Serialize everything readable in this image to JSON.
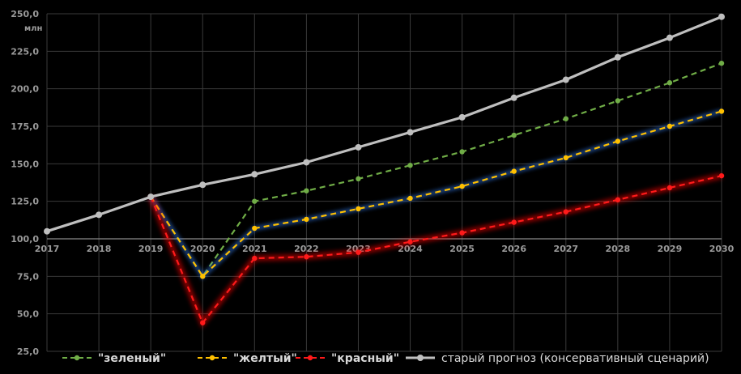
{
  "chart_data": {
    "type": "line",
    "ylabel": "млн",
    "x": [
      2017,
      2018,
      2019,
      2020,
      2021,
      2022,
      2023,
      2024,
      2025,
      2026,
      2027,
      2028,
      2029,
      2030
    ],
    "ylim": [
      25,
      250
    ],
    "yticks": [
      "25,0",
      "50,0",
      "75,0",
      "100,0",
      "125,0",
      "150,0",
      "175,0",
      "200,0",
      "225,0",
      "250,0"
    ],
    "ytick_values": [
      25,
      50,
      75,
      100,
      125,
      150,
      175,
      200,
      225,
      250
    ],
    "grid": true,
    "legend_position": "bottom",
    "series": [
      {
        "name": "\"зеленый\"",
        "color": "#70ad47",
        "dash": true,
        "bold": true,
        "values": [
          null,
          null,
          128,
          75,
          125,
          132,
          140,
          149,
          158,
          169,
          180,
          192,
          204,
          217
        ]
      },
      {
        "name": "\"желтый\"",
        "color": "#ffc000",
        "dash": true,
        "bold": true,
        "glow": "#2f6fd6",
        "values": [
          null,
          null,
          128,
          75,
          107,
          113,
          120,
          127,
          135,
          145,
          154,
          165,
          175,
          185
        ]
      },
      {
        "name": "\"красный\"",
        "color": "#ff1a1a",
        "dash": true,
        "bold": true,
        "glow": "#ff0000",
        "values": [
          null,
          null,
          128,
          44,
          87,
          88,
          91,
          98,
          104,
          111,
          118,
          126,
          134,
          142
        ]
      },
      {
        "name": "старый прогноз (консервативный сценарий)",
        "color": "#bfbfbf",
        "dash": false,
        "bold": false,
        "values": [
          105,
          116,
          128,
          136,
          143,
          151,
          161,
          171,
          181,
          194,
          206,
          221,
          234,
          248
        ]
      }
    ]
  }
}
